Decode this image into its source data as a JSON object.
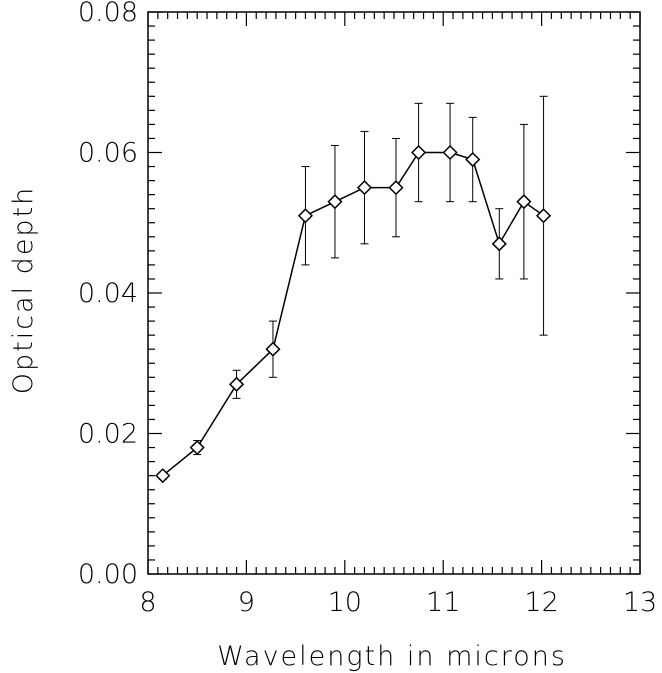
{
  "chart_data": {
    "type": "line",
    "xlabel": "Wavelength in microns",
    "ylabel": "Optical depth",
    "xlim": [
      8,
      13
    ],
    "ylim": [
      0,
      0.08
    ],
    "x_ticks": [
      8,
      9,
      10,
      11,
      12,
      13
    ],
    "x_tick_labels": [
      "8",
      "9",
      "10",
      "11",
      "12",
      "13"
    ],
    "y_ticks": [
      0,
      0.02,
      0.04,
      0.06,
      0.08
    ],
    "y_tick_labels": [
      "0.00",
      "0.02",
      "0.04",
      "0.06",
      "0.08"
    ],
    "grid": false,
    "marker": "diamond",
    "series": [
      {
        "x": [
          8.15,
          8.5,
          8.9,
          9.27,
          9.6,
          9.9,
          10.2,
          10.52,
          10.75,
          11.07,
          11.3,
          11.57,
          11.82,
          12.02
        ],
        "y": [
          0.014,
          0.018,
          0.027,
          0.032,
          0.051,
          0.053,
          0.055,
          0.055,
          0.06,
          0.06,
          0.059,
          0.047,
          0.053,
          0.051
        ],
        "y_err_low": [
          0.0135,
          0.017,
          0.025,
          0.028,
          0.044,
          0.045,
          0.047,
          0.048,
          0.053,
          0.053,
          0.053,
          0.042,
          0.042,
          0.034
        ],
        "y_err_high": [
          0.0145,
          0.019,
          0.029,
          0.036,
          0.058,
          0.061,
          0.063,
          0.062,
          0.067,
          0.067,
          0.065,
          0.052,
          0.064,
          0.068
        ]
      }
    ]
  }
}
